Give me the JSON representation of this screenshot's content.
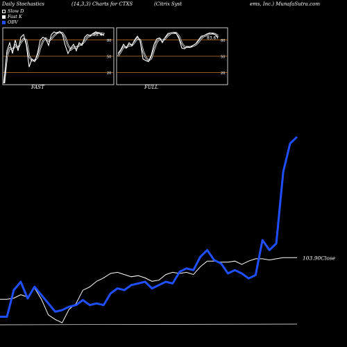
{
  "header": {
    "left": "Daily Stochastics",
    "mid": "(14,3,3) Charts for CTXS",
    "right1": "(Citrix Syst",
    "right2": "ems, Inc.) MunafaSutra.com"
  },
  "legend": [
    {
      "label": "Slow  D",
      "color": "#000000"
    },
    {
      "label": "Fast K",
      "color": "#ffffff"
    },
    {
      "label": "OBV",
      "color": "#1f4fff"
    }
  ],
  "panels": [
    {
      "name": "FAST",
      "value_label": "89.47",
      "levels": [
        "80",
        "50",
        "20"
      ]
    },
    {
      "name": "FULL",
      "value_label": "83.67",
      "levels": [
        "80",
        "50",
        "20"
      ]
    }
  ],
  "colors": {
    "background": "#000000",
    "obv": "#1f4fff",
    "price": "#ffffff",
    "panel_bg": "#000000",
    "level_line": "#c8782a"
  },
  "chart_data": [
    {
      "type": "line",
      "title": "Daily Stochastics (14,3,3) Charts for CTXS",
      "series": [
        {
          "name": "OBV",
          "values": [
            4,
            4,
            20,
            25,
            15,
            22,
            17,
            12,
            7,
            8,
            10,
            11,
            14,
            11,
            12,
            11,
            18,
            21,
            20,
            23,
            24,
            25,
            21,
            23,
            25,
            24,
            31,
            33,
            32,
            40,
            44,
            38,
            36,
            30,
            32,
            30,
            27,
            29,
            50,
            44,
            48,
            91,
            108,
            112
          ]
        },
        {
          "name": "Close",
          "values": [
            100.2,
            100.2,
            100.3,
            100.6,
            100.4,
            101.2,
            100.2,
            98.8,
            98.4,
            98.1,
            99.3,
            99.8,
            101.0,
            101.3,
            101.8,
            102.1,
            102.5,
            102.6,
            102.4,
            102.2,
            102.3,
            102.1,
            101.8,
            101.9,
            102.4,
            102.6,
            102.5,
            102.6,
            102.4,
            103.1,
            103.6,
            103.6,
            103.5,
            103.5,
            103.6,
            103.3,
            103.6,
            103.8,
            103.8,
            103.7,
            103.8,
            103.9,
            103.9,
            103.9
          ]
        }
      ],
      "last_close_label": "103.90",
      "close_label": "Close"
    },
    {
      "type": "line",
      "name": "FAST",
      "ylim": [
        0,
        100
      ],
      "series": [
        {
          "name": "Fast K",
          "values": [
            0,
            60,
            75,
            55,
            80,
            60,
            85,
            90,
            70,
            30,
            45,
            40,
            55,
            80,
            85,
            82,
            70,
            90,
            95,
            92,
            96,
            90,
            70,
            55,
            65,
            72,
            60,
            75,
            70,
            85,
            90,
            88,
            92,
            95,
            93,
            90,
            89.47
          ]
        },
        {
          "name": "Slow D",
          "values": [
            0,
            50,
            65,
            62,
            70,
            65,
            75,
            82,
            80,
            50,
            42,
            42,
            48,
            65,
            78,
            83,
            78,
            82,
            88,
            93,
            94,
            93,
            85,
            70,
            62,
            66,
            66,
            70,
            72,
            78,
            85,
            88,
            90,
            92,
            93,
            92,
            91
          ]
        }
      ]
    },
    {
      "type": "line",
      "name": "FULL",
      "ylim": [
        0,
        100
      ],
      "series": [
        {
          "name": "Fast K",
          "values": [
            55,
            62,
            72,
            65,
            75,
            70,
            80,
            87,
            78,
            45,
            42,
            40,
            52,
            72,
            82,
            84,
            75,
            85,
            92,
            93,
            94,
            92,
            82,
            65,
            64,
            68,
            66,
            70,
            73,
            80,
            87,
            88,
            91,
            93,
            92,
            90,
            83.67
          ]
        },
        {
          "name": "Slow D",
          "values": [
            50,
            58,
            67,
            66,
            70,
            70,
            76,
            83,
            80,
            60,
            48,
            42,
            46,
            62,
            76,
            82,
            79,
            82,
            88,
            92,
            93,
            93,
            87,
            74,
            67,
            67,
            67,
            69,
            71,
            76,
            83,
            87,
            89,
            91,
            92,
            91,
            88
          ]
        }
      ]
    }
  ]
}
